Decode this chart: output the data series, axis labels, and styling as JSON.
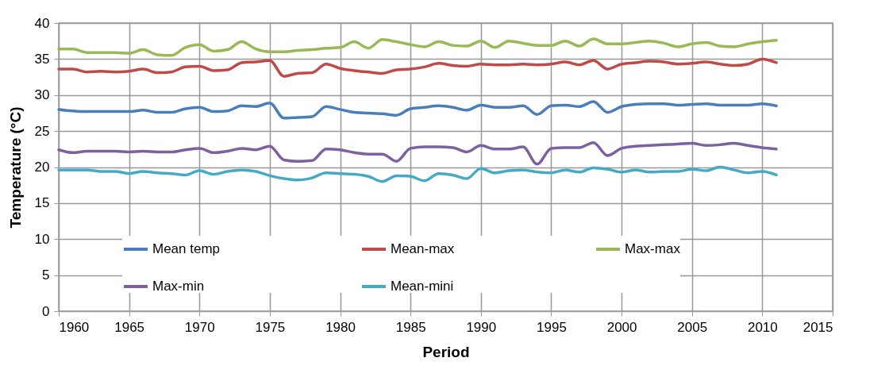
{
  "chart_data": {
    "type": "line",
    "xlabel": "Period",
    "ylabel": "Temperature (°C)",
    "x": [
      1960,
      1961,
      1962,
      1963,
      1964,
      1965,
      1966,
      1967,
      1968,
      1969,
      1970,
      1971,
      1972,
      1973,
      1974,
      1975,
      1976,
      1977,
      1978,
      1979,
      1980,
      1981,
      1982,
      1983,
      1984,
      1985,
      1986,
      1987,
      1988,
      1989,
      1990,
      1991,
      1992,
      1993,
      1994,
      1995,
      1996,
      1997,
      1998,
      1999,
      2000,
      2001,
      2002,
      2003,
      2004,
      2005,
      2006,
      2007,
      2008,
      2009,
      2010,
      2011
    ],
    "series": [
      {
        "name": "Mean temp",
        "color": "#4a7ebb",
        "values": [
          28.0,
          27.8,
          27.7,
          27.7,
          27.7,
          27.7,
          27.9,
          27.6,
          27.6,
          28.1,
          28.3,
          27.7,
          27.8,
          28.5,
          28.4,
          28.9,
          26.8,
          26.9,
          27.0,
          28.4,
          28.0,
          27.6,
          27.5,
          27.4,
          27.2,
          28.1,
          28.3,
          28.5,
          28.3,
          27.9,
          28.6,
          28.3,
          28.3,
          28.5,
          27.3,
          28.5,
          28.6,
          28.4,
          29.1,
          27.6,
          28.4,
          28.7,
          28.8,
          28.8,
          28.6,
          28.7,
          28.8,
          28.6,
          28.6,
          28.6,
          28.8,
          28.5
        ]
      },
      {
        "name": "Mean-max",
        "color": "#be4b48",
        "values": [
          33.6,
          33.6,
          33.2,
          33.3,
          33.2,
          33.3,
          33.6,
          33.1,
          33.2,
          33.9,
          34.0,
          33.4,
          33.5,
          34.5,
          34.6,
          34.8,
          32.6,
          33.0,
          33.1,
          34.3,
          33.7,
          33.4,
          33.2,
          33.0,
          33.5,
          33.6,
          33.9,
          34.4,
          34.1,
          34.0,
          34.3,
          34.2,
          34.2,
          34.3,
          34.2,
          34.3,
          34.6,
          34.2,
          34.8,
          33.6,
          34.3,
          34.5,
          34.7,
          34.6,
          34.3,
          34.4,
          34.6,
          34.3,
          34.1,
          34.3,
          35.0,
          34.5
        ]
      },
      {
        "name": "Max-max",
        "color": "#98b954",
        "values": [
          36.4,
          36.4,
          35.9,
          35.9,
          35.9,
          35.8,
          36.3,
          35.6,
          35.5,
          36.6,
          37.0,
          36.1,
          36.3,
          37.4,
          36.4,
          36.0,
          36.0,
          36.2,
          36.3,
          36.5,
          36.6,
          37.4,
          36.5,
          37.7,
          37.4,
          37.0,
          36.7,
          37.4,
          36.9,
          36.8,
          37.5,
          36.6,
          37.5,
          37.2,
          36.9,
          36.9,
          37.5,
          36.8,
          37.8,
          37.1,
          37.1,
          37.3,
          37.5,
          37.2,
          36.7,
          37.1,
          37.3,
          36.8,
          36.7,
          37.1,
          37.4,
          37.6
        ]
      },
      {
        "name": "Max-min",
        "color": "#7d60a0",
        "values": [
          22.4,
          22.0,
          22.2,
          22.2,
          22.2,
          22.1,
          22.2,
          22.1,
          22.1,
          22.4,
          22.6,
          22.0,
          22.2,
          22.6,
          22.4,
          22.9,
          21.0,
          20.8,
          20.9,
          22.5,
          22.4,
          22.0,
          21.8,
          21.8,
          20.8,
          22.6,
          22.8,
          22.8,
          22.7,
          22.1,
          23.0,
          22.5,
          22.5,
          22.8,
          20.4,
          22.6,
          22.7,
          22.7,
          23.4,
          21.6,
          22.6,
          22.9,
          23.0,
          23.1,
          23.2,
          23.3,
          23.0,
          23.1,
          23.3,
          23.0,
          22.7,
          22.5
        ]
      },
      {
        "name": "Mean-mini",
        "color": "#46aac5",
        "values": [
          19.6,
          19.6,
          19.6,
          19.4,
          19.4,
          19.1,
          19.4,
          19.2,
          19.1,
          18.9,
          19.5,
          19.0,
          19.4,
          19.6,
          19.4,
          18.8,
          18.4,
          18.2,
          18.5,
          19.2,
          19.1,
          19.0,
          18.7,
          18.0,
          18.8,
          18.7,
          18.1,
          19.1,
          18.9,
          18.4,
          19.8,
          19.2,
          19.5,
          19.6,
          19.3,
          19.2,
          19.6,
          19.3,
          19.9,
          19.7,
          19.3,
          19.6,
          19.3,
          19.4,
          19.4,
          19.7,
          19.5,
          20.0,
          19.6,
          19.2,
          19.4,
          18.9
        ]
      }
    ],
    "xlim": [
      1960,
      2015
    ],
    "xticks": [
      1960,
      1965,
      1970,
      1975,
      1980,
      1985,
      1990,
      1995,
      2000,
      2005,
      2010,
      2015
    ],
    "ylim": [
      0,
      40
    ],
    "yticks": [
      0,
      5,
      10,
      15,
      20,
      25,
      30,
      35,
      40
    ],
    "grid": true,
    "legend": "bottom",
    "marker": "none",
    "line_style": "solid"
  }
}
